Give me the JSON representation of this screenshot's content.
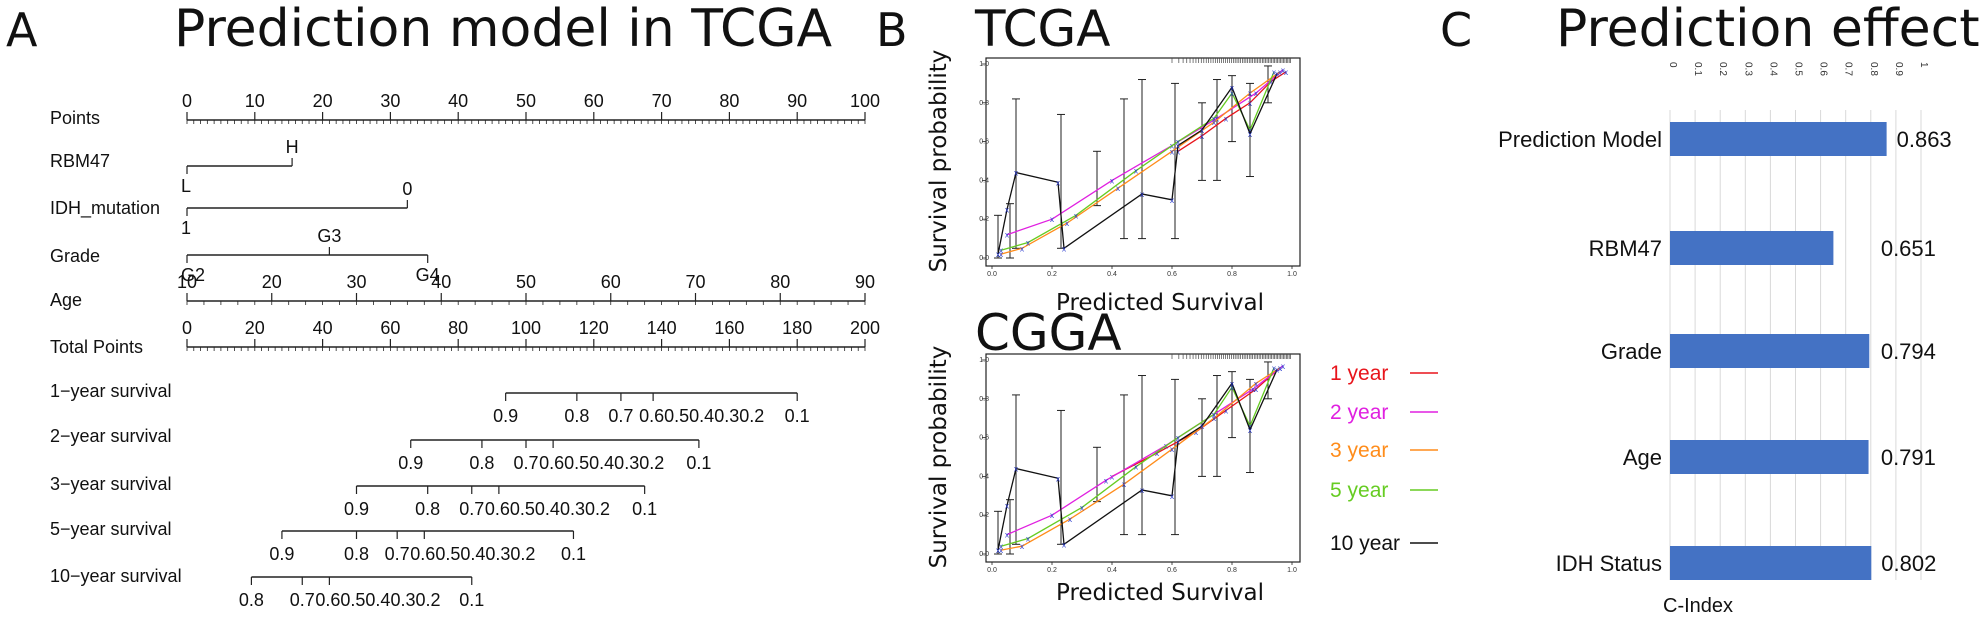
{
  "panels": {
    "a": {
      "letter": "A",
      "title": "Prediction model in TCGA"
    },
    "b": {
      "letter": "B",
      "upper_title": "TCGA",
      "lower_title": "CGGA"
    },
    "c": {
      "letter": "C",
      "title": "Prediction effect"
    }
  },
  "chart_data": [
    {
      "type": "nomogram",
      "title": "Prediction model in TCGA",
      "rows": [
        {
          "name": "Points",
          "scale": [
            0,
            100
          ],
          "ticks": [
            {
              "v": 0,
              "label": "0"
            },
            {
              "v": 10,
              "label": "10"
            },
            {
              "v": 20,
              "label": "20"
            },
            {
              "v": 30,
              "label": "30"
            },
            {
              "v": 40,
              "label": "40"
            },
            {
              "v": 50,
              "label": "50"
            },
            {
              "v": 60,
              "label": "60"
            },
            {
              "v": 70,
              "label": "70"
            },
            {
              "v": 80,
              "label": "80"
            },
            {
              "v": 90,
              "label": "90"
            },
            {
              "v": 100,
              "label": "100"
            }
          ]
        },
        {
          "name": "RBM47",
          "scale": [
            0,
            100
          ],
          "range": [
            0,
            15.5
          ],
          "ticks": [
            {
              "v": 0,
              "label": "L",
              "pos": "below"
            },
            {
              "v": 15.5,
              "label": "H",
              "pos": "above"
            }
          ]
        },
        {
          "name": "IDH_mutation",
          "scale": [
            0,
            100
          ],
          "range": [
            0,
            32.5
          ],
          "ticks": [
            {
              "v": 0,
              "label": "1",
              "pos": "below"
            },
            {
              "v": 32.5,
              "label": "0",
              "pos": "above"
            }
          ]
        },
        {
          "name": "Grade",
          "scale": [
            0,
            100
          ],
          "range": [
            0,
            35.5
          ],
          "ticks": [
            {
              "v": 0,
              "label": "G2",
              "pos": "below"
            },
            {
              "v": 21,
              "label": "G3",
              "pos": "above"
            },
            {
              "v": 35.5,
              "label": "G4",
              "pos": "below"
            }
          ]
        },
        {
          "name": "Age",
          "scale": [
            0,
            100
          ],
          "range": [
            0,
            100
          ],
          "ticks": [
            {
              "v": 0,
              "label": "10"
            },
            {
              "v": 12.5,
              "label": "20"
            },
            {
              "v": 25,
              "label": "30"
            },
            {
              "v": 37.5,
              "label": "40"
            },
            {
              "v": 50,
              "label": "50"
            },
            {
              "v": 62.5,
              "label": "60"
            },
            {
              "v": 75,
              "label": "70"
            },
            {
              "v": 87.5,
              "label": "80"
            },
            {
              "v": 100,
              "label": "90"
            }
          ]
        },
        {
          "name": "Total Points",
          "scale": [
            0,
            200
          ],
          "range": [
            0,
            200
          ],
          "ticks": [
            {
              "v": 0,
              "label": "0"
            },
            {
              "v": 20,
              "label": "20"
            },
            {
              "v": 40,
              "label": "40"
            },
            {
              "v": 60,
              "label": "60"
            },
            {
              "v": 80,
              "label": "80"
            },
            {
              "v": 100,
              "label": "100"
            },
            {
              "v": 120,
              "label": "120"
            },
            {
              "v": 140,
              "label": "140"
            },
            {
              "v": 160,
              "label": "160"
            },
            {
              "v": 180,
              "label": "180"
            },
            {
              "v": 200,
              "label": "200"
            }
          ]
        },
        {
          "name": "1−year survival",
          "scale": [
            0,
            200
          ],
          "range": [
            94,
            180
          ],
          "ticks": [
            {
              "v": 94,
              "label": "0.9"
            },
            {
              "v": 115,
              "label": "0.8"
            },
            {
              "v": 128,
              "label": "0.7"
            },
            {
              "v": 137.5,
              "label": "0.60.50.40.30.2"
            },
            {
              "v": 180,
              "label": "0.1"
            }
          ]
        },
        {
          "name": "2−year survival",
          "scale": [
            0,
            200
          ],
          "range": [
            66,
            151
          ],
          "ticks": [
            {
              "v": 66,
              "label": "0.9"
            },
            {
              "v": 87,
              "label": "0.8"
            },
            {
              "v": 100,
              "label": "0.7"
            },
            {
              "v": 108,
              "label": "0.60.50.40.30.2"
            },
            {
              "v": 151,
              "label": "0.1"
            }
          ]
        },
        {
          "name": "3−year survival",
          "scale": [
            0,
            200
          ],
          "range": [
            50,
            135
          ],
          "ticks": [
            {
              "v": 50,
              "label": "0.9"
            },
            {
              "v": 71,
              "label": "0.8"
            },
            {
              "v": 84,
              "label": "0.7"
            },
            {
              "v": 92,
              "label": "0.60.50.40.30.2"
            },
            {
              "v": 135,
              "label": "0.1"
            }
          ]
        },
        {
          "name": "5−year survival",
          "scale": [
            0,
            200
          ],
          "range": [
            28,
            114
          ],
          "ticks": [
            {
              "v": 28,
              "label": "0.9"
            },
            {
              "v": 50,
              "label": "0.8"
            },
            {
              "v": 62,
              "label": "0.7"
            },
            {
              "v": 70,
              "label": "0.60.50.40.30.2"
            },
            {
              "v": 114,
              "label": "0.1"
            }
          ]
        },
        {
          "name": "10−year survival",
          "scale": [
            0,
            200
          ],
          "range": [
            19,
            84
          ],
          "ticks": [
            {
              "v": 19,
              "label": "0.8"
            },
            {
              "v": 34,
              "label": "0.7"
            },
            {
              "v": 42,
              "label": "0.60.50.40.30.2"
            },
            {
              "v": 84,
              "label": "0.1"
            }
          ]
        }
      ]
    },
    {
      "type": "line",
      "title": "TCGA",
      "xlabel": "Predicted  Survival",
      "ylabel": "Survival probability",
      "xlim": [
        0,
        1
      ],
      "ylim": [
        0,
        1
      ],
      "xticks": [
        "0.0",
        "0.2",
        "0.4",
        "0.6",
        "0.8",
        "1.0"
      ],
      "yticks": [
        "0.0",
        "0.2",
        "0.4",
        "0.6",
        "0.8",
        "1.0"
      ],
      "series": [
        {
          "name": "1 year",
          "color": "#e8141b",
          "points": [
            [
              0.62,
              0.55
            ],
            [
              0.7,
              0.63
            ],
            [
              0.78,
              0.72
            ],
            [
              0.86,
              0.8
            ],
            [
              0.93,
              0.91
            ],
            [
              0.98,
              0.96
            ]
          ]
        },
        {
          "name": "2 year",
          "color": "#e020e0",
          "points": [
            [
              0.05,
              0.12
            ],
            [
              0.2,
              0.2
            ],
            [
              0.4,
              0.4
            ],
            [
              0.6,
              0.58
            ],
            [
              0.75,
              0.72
            ],
            [
              0.88,
              0.85
            ],
            [
              0.97,
              0.97
            ]
          ]
        },
        {
          "name": "3 year",
          "color": "#ff8c1a",
          "points": [
            [
              0.03,
              0.02
            ],
            [
              0.1,
              0.05
            ],
            [
              0.25,
              0.18
            ],
            [
              0.42,
              0.36
            ],
            [
              0.6,
              0.55
            ],
            [
              0.74,
              0.7
            ],
            [
              0.86,
              0.85
            ],
            [
              0.96,
              0.96
            ]
          ]
        },
        {
          "name": "5 year",
          "color": "#66cc22",
          "points": [
            [
              0.03,
              0.04
            ],
            [
              0.12,
              0.08
            ],
            [
              0.28,
              0.22
            ],
            [
              0.48,
              0.45
            ],
            [
              0.62,
              0.6
            ],
            [
              0.74,
              0.72
            ],
            [
              0.8,
              0.85
            ],
            [
              0.86,
              0.66
            ],
            [
              0.94,
              0.96
            ]
          ]
        },
        {
          "name": "10 year",
          "color": "#111111",
          "points": [
            [
              0.02,
              0.02
            ],
            [
              0.05,
              0.25
            ],
            [
              0.08,
              0.44
            ],
            [
              0.22,
              0.39
            ],
            [
              0.24,
              0.05
            ],
            [
              0.5,
              0.33
            ],
            [
              0.6,
              0.3
            ],
            [
              0.62,
              0.58
            ],
            [
              0.7,
              0.66
            ],
            [
              0.8,
              0.88
            ],
            [
              0.86,
              0.64
            ],
            [
              0.95,
              0.95
            ]
          ]
        }
      ],
      "error_bars": [
        {
          "x": 0.02,
          "lo": 0.0,
          "hi": 0.22
        },
        {
          "x": 0.06,
          "lo": 0.0,
          "hi": 0.28
        },
        {
          "x": 0.08,
          "lo": 0.05,
          "hi": 0.82
        },
        {
          "x": 0.23,
          "lo": 0.05,
          "hi": 0.74
        },
        {
          "x": 0.35,
          "lo": 0.27,
          "hi": 0.55
        },
        {
          "x": 0.44,
          "lo": 0.1,
          "hi": 0.82
        },
        {
          "x": 0.5,
          "lo": 0.1,
          "hi": 0.92
        },
        {
          "x": 0.61,
          "lo": 0.1,
          "hi": 0.9
        },
        {
          "x": 0.7,
          "lo": 0.4,
          "hi": 0.8
        },
        {
          "x": 0.75,
          "lo": 0.4,
          "hi": 0.92
        },
        {
          "x": 0.8,
          "lo": 0.6,
          "hi": 0.94
        },
        {
          "x": 0.86,
          "lo": 0.42,
          "hi": 0.9
        },
        {
          "x": 0.92,
          "lo": 0.8,
          "hi": 0.99
        }
      ]
    },
    {
      "type": "line",
      "title": "CGGA",
      "xlabel": "Predicted  Survival",
      "ylabel": "Survival probability",
      "xlim": [
        0,
        1
      ],
      "ylim": [
        0,
        1
      ],
      "xticks": [
        "0.0",
        "0.2",
        "0.4",
        "0.6",
        "0.8",
        "1.0"
      ],
      "yticks": [
        "0.0",
        "0.2",
        "0.4",
        "0.6",
        "0.8",
        "1.0"
      ],
      "series": [
        {
          "name": "1 year",
          "color": "#e8141b",
          "points": [
            [
              0.4,
              0.4
            ],
            [
              0.55,
              0.52
            ],
            [
              0.68,
              0.63
            ],
            [
              0.78,
              0.74
            ],
            [
              0.88,
              0.85
            ],
            [
              0.96,
              0.96
            ]
          ]
        },
        {
          "name": "2 year",
          "color": "#e020e0",
          "points": [
            [
              0.05,
              0.1
            ],
            [
              0.2,
              0.2
            ],
            [
              0.38,
              0.38
            ],
            [
              0.58,
              0.56
            ],
            [
              0.74,
              0.72
            ],
            [
              0.87,
              0.85
            ],
            [
              0.97,
              0.97
            ]
          ]
        },
        {
          "name": "3 year",
          "color": "#ff8c1a",
          "points": [
            [
              0.03,
              0.02
            ],
            [
              0.1,
              0.04
            ],
            [
              0.26,
              0.18
            ],
            [
              0.44,
              0.36
            ],
            [
              0.6,
              0.54
            ],
            [
              0.74,
              0.7
            ],
            [
              0.88,
              0.88
            ],
            [
              0.96,
              0.96
            ]
          ]
        },
        {
          "name": "5 year",
          "color": "#66cc22",
          "points": [
            [
              0.03,
              0.04
            ],
            [
              0.12,
              0.08
            ],
            [
              0.3,
              0.24
            ],
            [
              0.48,
              0.45
            ],
            [
              0.62,
              0.6
            ],
            [
              0.74,
              0.72
            ],
            [
              0.8,
              0.86
            ],
            [
              0.86,
              0.66
            ],
            [
              0.94,
              0.96
            ]
          ]
        },
        {
          "name": "10 year",
          "color": "#111111",
          "points": [
            [
              0.02,
              0.02
            ],
            [
              0.05,
              0.25
            ],
            [
              0.08,
              0.44
            ],
            [
              0.22,
              0.39
            ],
            [
              0.24,
              0.05
            ],
            [
              0.5,
              0.33
            ],
            [
              0.6,
              0.3
            ],
            [
              0.62,
              0.58
            ],
            [
              0.7,
              0.66
            ],
            [
              0.8,
              0.88
            ],
            [
              0.86,
              0.64
            ],
            [
              0.95,
              0.95
            ]
          ]
        }
      ],
      "error_bars": [
        {
          "x": 0.02,
          "lo": 0.0,
          "hi": 0.22
        },
        {
          "x": 0.06,
          "lo": 0.0,
          "hi": 0.28
        },
        {
          "x": 0.08,
          "lo": 0.05,
          "hi": 0.82
        },
        {
          "x": 0.23,
          "lo": 0.05,
          "hi": 0.74
        },
        {
          "x": 0.35,
          "lo": 0.27,
          "hi": 0.55
        },
        {
          "x": 0.44,
          "lo": 0.1,
          "hi": 0.82
        },
        {
          "x": 0.5,
          "lo": 0.1,
          "hi": 0.92
        },
        {
          "x": 0.61,
          "lo": 0.1,
          "hi": 0.9
        },
        {
          "x": 0.7,
          "lo": 0.4,
          "hi": 0.8
        },
        {
          "x": 0.75,
          "lo": 0.4,
          "hi": 0.92
        },
        {
          "x": 0.8,
          "lo": 0.6,
          "hi": 0.94
        },
        {
          "x": 0.86,
          "lo": 0.42,
          "hi": 0.9
        },
        {
          "x": 0.92,
          "lo": 0.8,
          "hi": 0.99
        }
      ],
      "legend": [
        {
          "label": "1 year",
          "color": "#e8141b"
        },
        {
          "label": "2 year",
          "color": "#e020e0"
        },
        {
          "label": "3 year",
          "color": "#ff8c1a"
        },
        {
          "label": "5 year",
          "color": "#66cc22"
        },
        {
          "label": "10 year",
          "color": "#111111"
        }
      ]
    },
    {
      "type": "bar",
      "orientation": "horizontal",
      "title": "Prediction effect",
      "xlabel": "C-Index",
      "xlim": [
        0,
        1
      ],
      "xticks": [
        "0",
        "0.1",
        "0.2",
        "0.3",
        "0.4",
        "0.5",
        "0.6",
        "0.7",
        "0.8",
        "0.9",
        "1"
      ],
      "bar_color": "#4472c4",
      "categories": [
        "Prediction Model",
        "RBM47",
        "Grade",
        "Age",
        "IDH Status"
      ],
      "values": [
        0.863,
        0.651,
        0.794,
        0.791,
        0.802
      ],
      "value_labels": [
        "0.863",
        "0.651",
        "0.794",
        "0.791",
        "0.802"
      ]
    }
  ]
}
